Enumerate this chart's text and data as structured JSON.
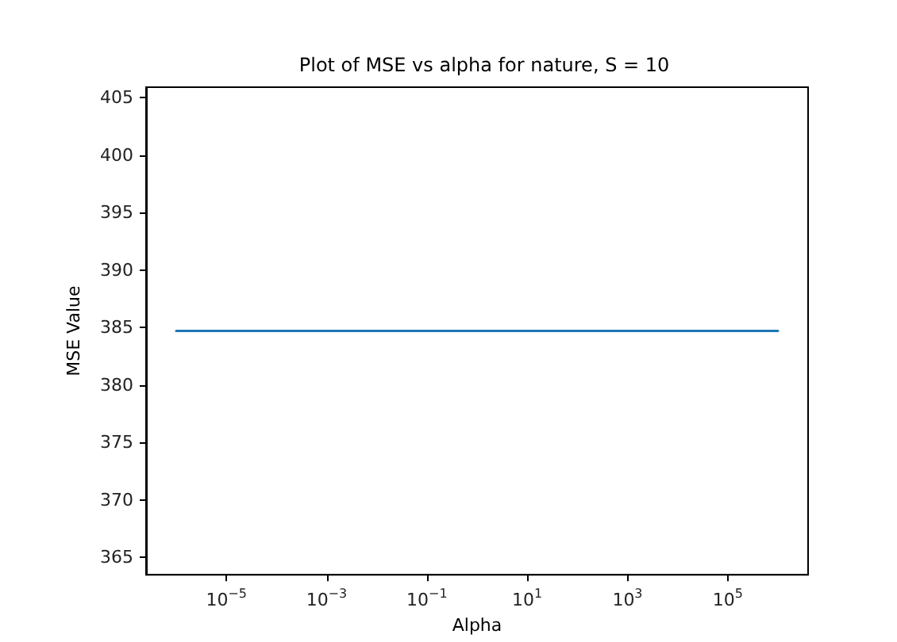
{
  "chart_data": {
    "type": "line",
    "title": "Plot of MSE vs alpha for nature, S = 10",
    "xlabel": "Alpha",
    "ylabel": "MSE Value",
    "log": "x",
    "x": [
      1e-06,
      1000000
    ],
    "series": [
      {
        "color": "#1f77b4",
        "values": [
          384.7,
          384.7
        ]
      }
    ],
    "xlim": [
      2.5e-07,
      4000000.0
    ],
    "xticks": [
      {
        "value": 1e-05,
        "label": "10$^{−5}$"
      },
      {
        "value": 0.001,
        "label": "10$^{−3}$"
      },
      {
        "value": 0.1,
        "label": "10$^{−1}$"
      },
      {
        "value": 10,
        "label": "10$^{1}$"
      },
      {
        "value": 1000,
        "label": "10$^{3}$"
      },
      {
        "value": 100000,
        "label": "10$^{5}$"
      }
    ],
    "ylim": [
      363.5,
      405.9
    ],
    "yticks": [
      365,
      370,
      375,
      380,
      385,
      390,
      395,
      400,
      405
    ],
    "grid": false,
    "marker": "none",
    "line_style": "solid"
  }
}
